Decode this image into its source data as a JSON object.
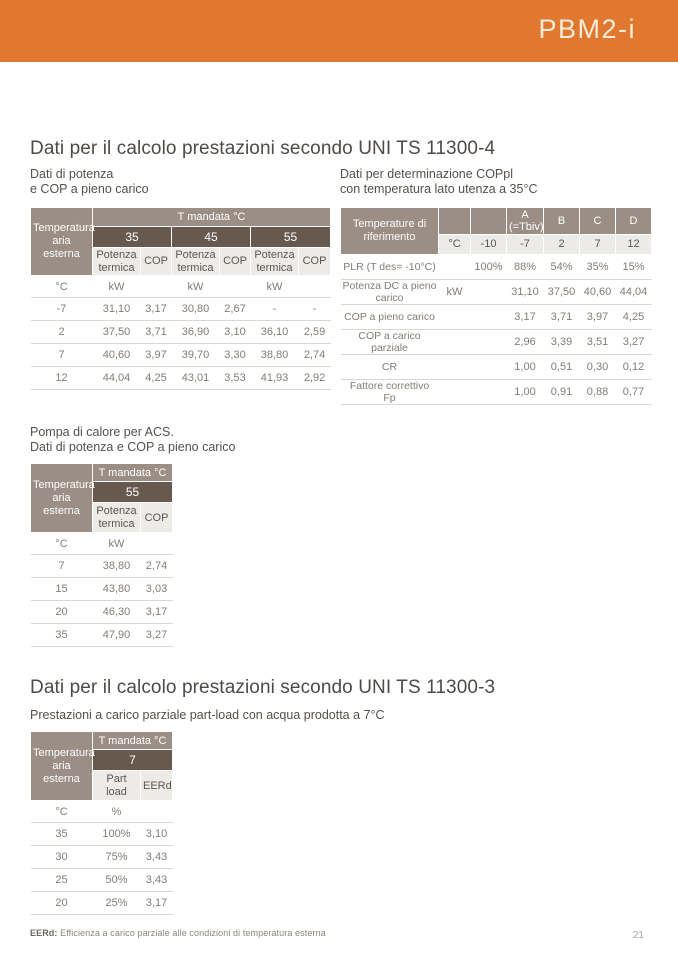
{
  "header": {
    "brand": "PBM2-i"
  },
  "colors": {
    "accent_orange": "#e1782f",
    "header_taupe": "#9b8e85",
    "header_dark_brown": "#68594f",
    "header_light_gray": "#edebe8"
  },
  "section_11300_4": {
    "title": "Dati per il calcolo prestazioni secondo UNI TS 11300-4",
    "power_table": {
      "subtitle_line1": "Dati di potenza",
      "subtitle_line2": "e COP a pieno carico",
      "corner_label": "Temperatura aria esterna",
      "span_header": "T mandata °C",
      "temp_groups": [
        "35",
        "45",
        "55"
      ],
      "sub_header_potenza": "Potenza termica",
      "sub_header_cop": "COP",
      "units_row": [
        "°C",
        "kW",
        "",
        "kW",
        "",
        "kW",
        ""
      ],
      "rows": [
        [
          "-7",
          "31,10",
          "3,17",
          "30,80",
          "2,67",
          "-",
          "-"
        ],
        [
          "2",
          "37,50",
          "3,71",
          "36,90",
          "3,10",
          "36,10",
          "2,59"
        ],
        [
          "7",
          "40,60",
          "3,97",
          "39,70",
          "3,30",
          "38,80",
          "2,74"
        ],
        [
          "12",
          "44,04",
          "4,25",
          "43,01",
          "3,53",
          "41,93",
          "2,92"
        ]
      ]
    },
    "coppl_table": {
      "subtitle_line1": "Dati per determinazione COPpl",
      "subtitle_line2": "con temperatura lato utenza a 35°C",
      "corner_label": "Temperature di riferimento",
      "col_letters": [
        "",
        "",
        "A (=Tbiv)",
        "B",
        "C",
        "D"
      ],
      "col_temps": [
        "°C",
        "-10",
        "-7",
        "2",
        "7",
        "12"
      ],
      "rows": [
        [
          "PLR (T des= -10°C)",
          "",
          "100%",
          "88%",
          "54%",
          "35%",
          "15%"
        ],
        [
          "Potenza DC a pieno carico",
          "kW",
          "",
          "31,10",
          "37,50",
          "40,60",
          "44,04"
        ],
        [
          "COP a pieno carico",
          "",
          "",
          "3,17",
          "3,71",
          "3,97",
          "4,25"
        ],
        [
          "COP a carico parziale",
          "",
          "",
          "2,96",
          "3,39",
          "3,51",
          "3,27"
        ],
        [
          "CR",
          "",
          "",
          "1,00",
          "0,51",
          "0,30",
          "0,12"
        ],
        [
          "Fattore correttivo Fp",
          "",
          "",
          "1,00",
          "0,91",
          "0,88",
          "0,77"
        ]
      ]
    },
    "acs_table": {
      "title_line1": "Pompa di calore per ACS.",
      "title_line2": "Dati di potenza e COP a pieno carico",
      "corner_label": "Temperatura aria esterna",
      "span_header": "T mandata °C",
      "temp_group": "55",
      "sub_header_potenza": "Potenza termica",
      "sub_header_cop": "COP",
      "units_row": [
        "°C",
        "kW",
        ""
      ],
      "rows": [
        [
          "7",
          "38,80",
          "2,74"
        ],
        [
          "15",
          "43,80",
          "3,03"
        ],
        [
          "20",
          "46,30",
          "3,17"
        ],
        [
          "35",
          "47,90",
          "3,27"
        ]
      ]
    }
  },
  "section_11300_3": {
    "title": "Dati per il calcolo prestazioni secondo UNI TS 11300-3",
    "subtitle": "Prestazioni a carico parziale part-load con acqua prodotta a 7°C",
    "partload_table": {
      "corner_label": "Temperatura aria esterna",
      "span_header": "T mandata °C",
      "temp_group": "7",
      "sub_header_partload": "Part load",
      "sub_header_eerd": "EERd",
      "units_row": [
        "°C",
        "%",
        ""
      ],
      "rows": [
        [
          "35",
          "100%",
          "3,10"
        ],
        [
          "30",
          "75%",
          "3,43"
        ],
        [
          "25",
          "50%",
          "3,43"
        ],
        [
          "20",
          "25%",
          "3,17"
        ]
      ]
    },
    "footnote_term": "EERd:",
    "footnote_text": " Efficienza a carico parziale alle condizioni di temperatura esterna"
  },
  "footer": {
    "page_number": "21"
  }
}
